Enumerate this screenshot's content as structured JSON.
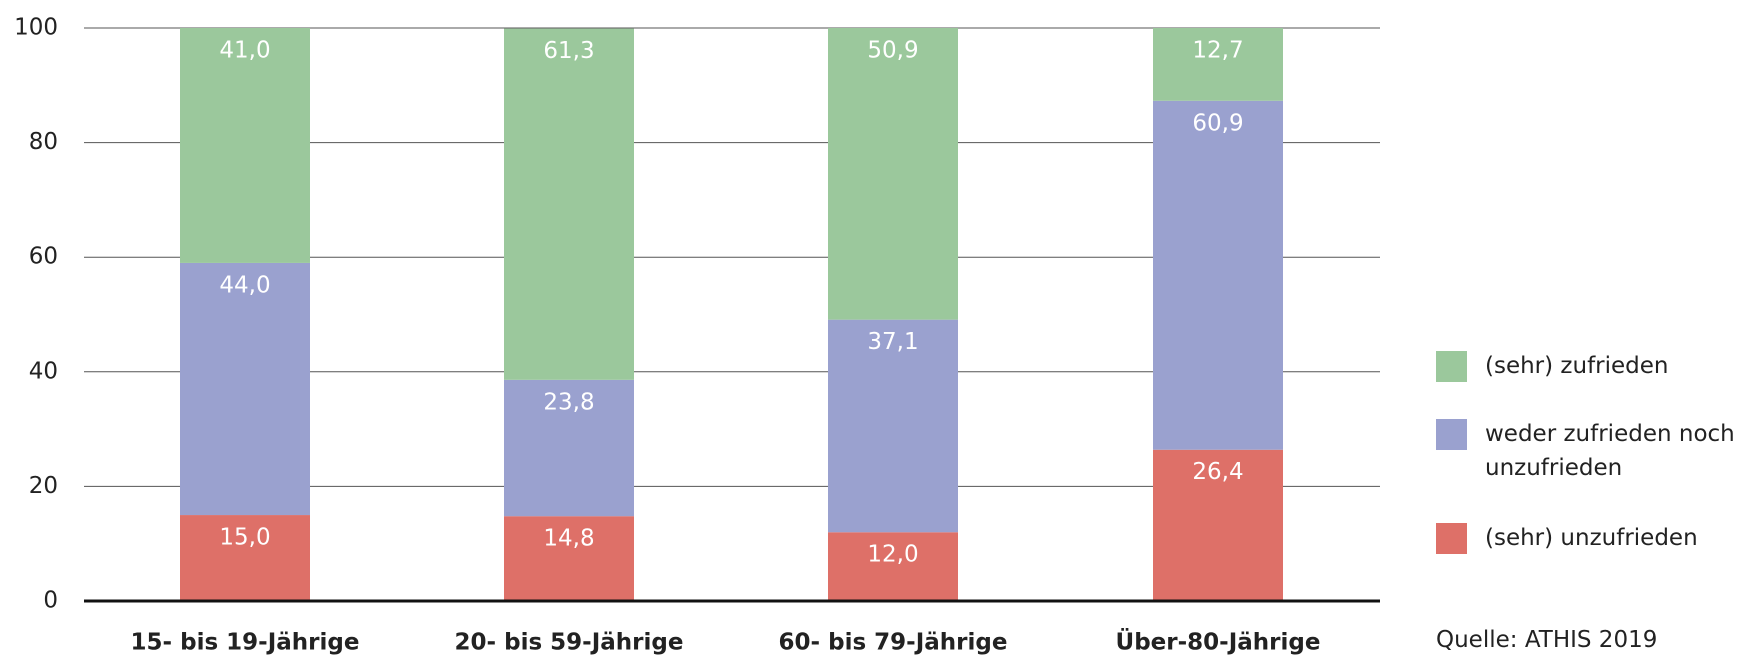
{
  "chart_data": {
    "type": "stacked_bar",
    "categories": [
      "15- bis 19-Jährige",
      "20- bis 59-Jährige",
      "60- bis 79-Jährige",
      "Über-80-Jährige"
    ],
    "series": [
      {
        "name": "(sehr) unzufrieden",
        "color": "#de7068",
        "values": [
          15.0,
          14.8,
          12.0,
          26.4
        ],
        "value_labels": [
          "15,0",
          "14,8",
          "12,0",
          "26,4"
        ]
      },
      {
        "name": "weder zufrieden noch unzufrieden",
        "color": "#9aa1cf",
        "values": [
          44.0,
          23.8,
          37.1,
          60.9
        ],
        "value_labels": [
          "44,0",
          "23,8",
          "37,1",
          "60,9"
        ]
      },
      {
        "name": "(sehr) zufrieden",
        "color": "#9bc89c",
        "values": [
          41.0,
          61.3,
          50.9,
          12.7
        ],
        "value_labels": [
          "41,0",
          "61,3",
          "50,9",
          "12,7"
        ]
      }
    ],
    "ylim": [
      0,
      100
    ],
    "yticks": [
      0,
      20,
      40,
      60,
      80,
      100
    ],
    "grid": true,
    "source": "Quelle: ATHIS 2019"
  }
}
